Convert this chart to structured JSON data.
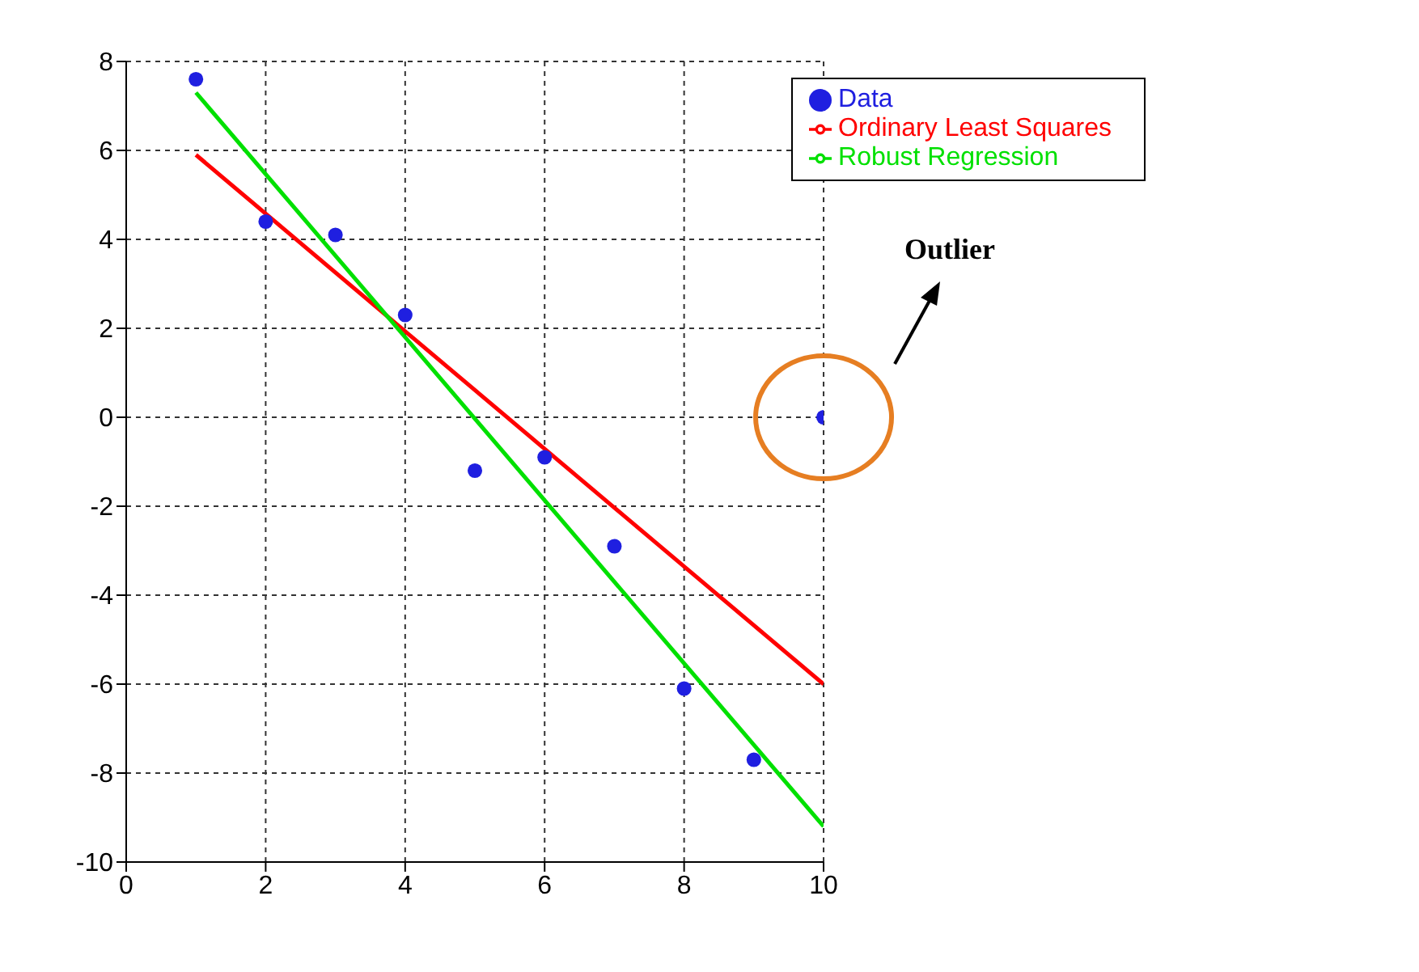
{
  "chart_data": {
    "type": "scatter",
    "xlim": [
      0,
      10
    ],
    "ylim": [
      -10,
      8
    ],
    "xticks": [
      0,
      2,
      4,
      6,
      8,
      10
    ],
    "yticks": [
      -10,
      -8,
      -6,
      -4,
      -2,
      0,
      2,
      4,
      6,
      8
    ],
    "grid": true,
    "legend": "top right",
    "line_style": "solid",
    "annotations": [
      "Outlier"
    ],
    "series": [
      {
        "name": "Data",
        "marker": "circle",
        "color": "#1f1fe0",
        "x": [
          1,
          2,
          3,
          4,
          5,
          6,
          7,
          8,
          9,
          10
        ],
        "values": [
          7.6,
          4.4,
          4.1,
          2.3,
          -1.2,
          -0.9,
          -2.9,
          -6.1,
          -7.7,
          0
        ]
      },
      {
        "name": "Ordinary Least Squares",
        "type": "line",
        "color": "#ff0000",
        "x": [
          1,
          10
        ],
        "values": [
          5.9,
          -6
        ]
      },
      {
        "name": "Robust Regression",
        "type": "line",
        "color": "#00e000",
        "x": [
          1,
          10
        ],
        "values": [
          7.3,
          -9.2
        ]
      }
    ]
  }
}
